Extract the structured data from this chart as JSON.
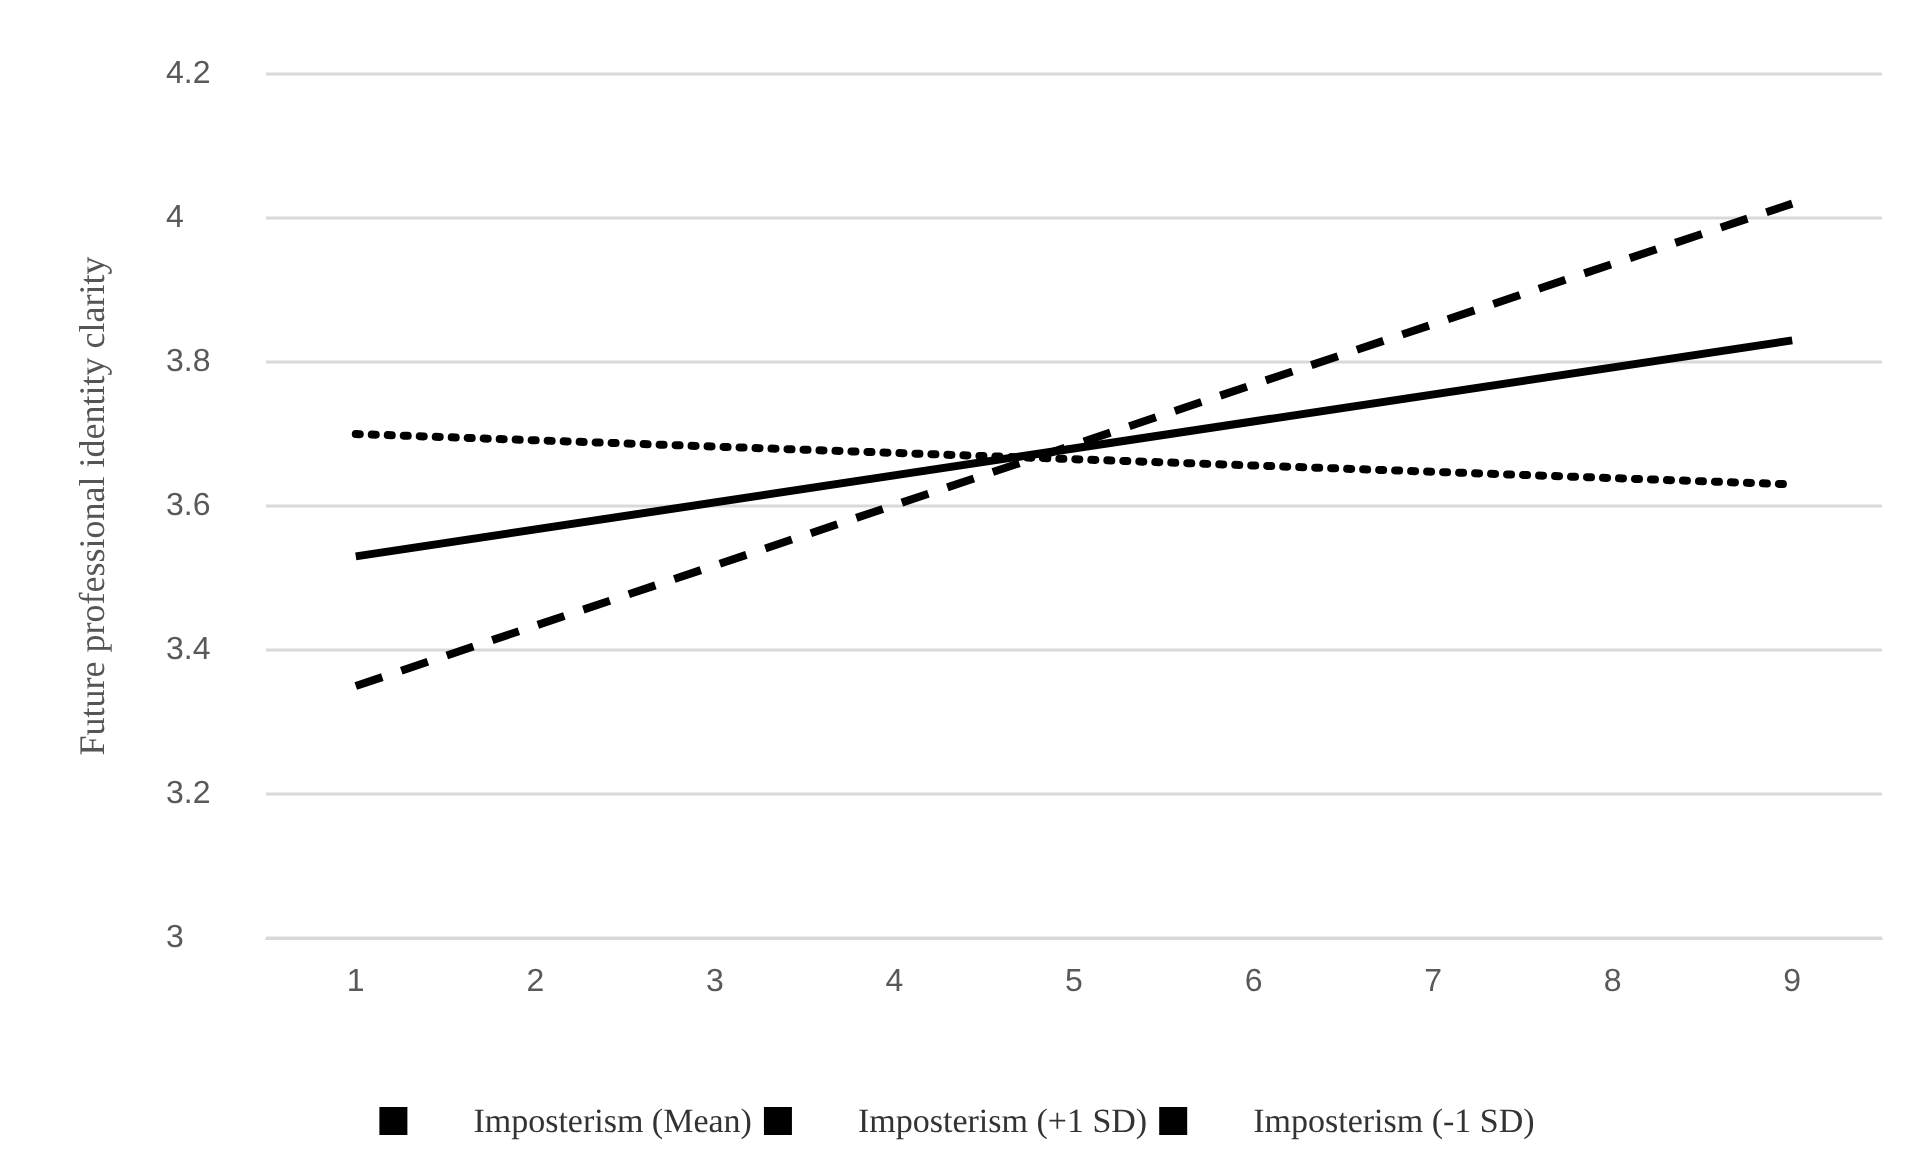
{
  "chart_data": {
    "type": "line",
    "ylabel": "Future professional identity clarity",
    "categories": [
      "1",
      "2",
      "3",
      "4",
      "5",
      "6",
      "7",
      "8",
      "9"
    ],
    "series": [
      {
        "name": "Imposterism (Mean)",
        "color": "#000000",
        "line_style": "solid",
        "values": [
          3.53,
          null,
          null,
          null,
          null,
          null,
          null,
          null,
          3.83
        ]
      },
      {
        "name": "Imposterism (+1 SD)",
        "color": "#000000",
        "line_style": "dashed",
        "values": [
          3.35,
          null,
          null,
          null,
          null,
          null,
          null,
          null,
          4.02
        ]
      },
      {
        "name": "Imposterism (-1 SD)",
        "color": "#000000",
        "line_style": "dotted",
        "values": [
          3.7,
          null,
          null,
          null,
          null,
          null,
          null,
          null,
          3.63
        ]
      }
    ],
    "ylim": [
      3,
      4.2
    ],
    "yticks": [
      3,
      3.2,
      3.4,
      3.6,
      3.8,
      4,
      4.2
    ],
    "grid": "y",
    "legend": "bottom",
    "marker": "none"
  }
}
